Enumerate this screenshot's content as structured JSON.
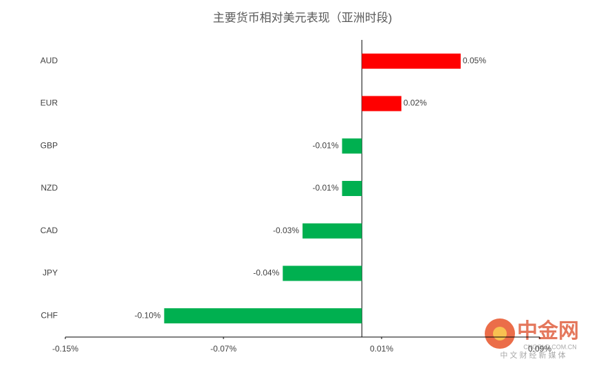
{
  "chart_data": {
    "type": "hbar",
    "title": "主要货币相对美元表现（亚洲时段)",
    "categories": [
      "AUD",
      "EUR",
      "GBP",
      "NZD",
      "CAD",
      "JPY",
      "CHF"
    ],
    "values": [
      0.05,
      0.02,
      -0.01,
      -0.01,
      -0.03,
      -0.04,
      -0.1
    ],
    "value_labels": [
      "0.05%",
      "0.02%",
      "-0.01%",
      "-0.01%",
      "-0.03%",
      "-0.04%",
      "-0.10%"
    ],
    "colors": [
      "#ff0000",
      "#ff0000",
      "#00b050",
      "#00b050",
      "#00b050",
      "#00b050",
      "#00b050"
    ],
    "xlim": [
      -0.15,
      0.09
    ],
    "xticks": [
      {
        "value": -0.15,
        "label": "-0.15%"
      },
      {
        "value": -0.07,
        "label": "-0.07%"
      },
      {
        "value": 0.01,
        "label": "0.01%"
      },
      {
        "value": 0.09,
        "label": "0.09%"
      }
    ],
    "grid": false
  },
  "watermark": {
    "brand": "中金网",
    "domain": "CNGOLD.COM.CN",
    "tagline": "中 文 财 经 新 媒 体"
  }
}
